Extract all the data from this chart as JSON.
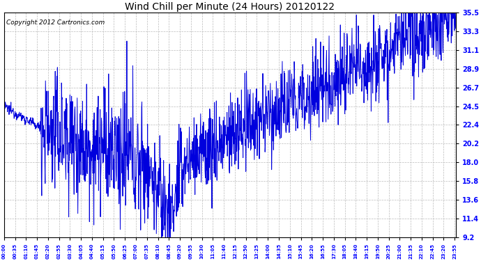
{
  "title": "Wind Chill per Minute (24 Hours) 20120122",
  "copyright": "Copyright 2012 Cartronics.com",
  "y_ticks": [
    9.2,
    11.4,
    13.6,
    15.8,
    18.0,
    20.2,
    22.4,
    24.5,
    26.7,
    28.9,
    31.1,
    33.3,
    35.5
  ],
  "y_min": 9.2,
  "y_max": 35.5,
  "line_color": "#0000dd",
  "bg_color": "#ffffff",
  "grid_color": "#bbbbbb",
  "title_fontsize": 10,
  "copyright_fontsize": 6.5
}
